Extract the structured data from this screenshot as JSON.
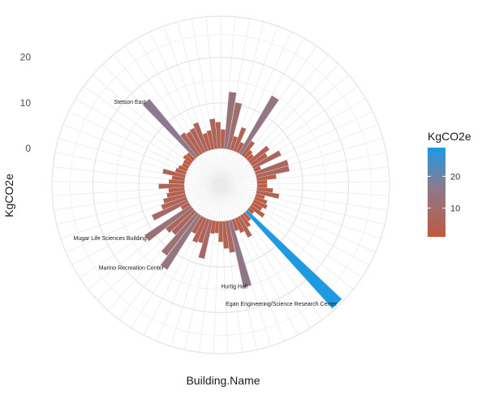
{
  "chart_data": {
    "type": "bar",
    "coord": "polar",
    "xlabel": "Building.Name",
    "ylabel": "KgCO2e",
    "y_ticks": [
      0,
      10,
      20
    ],
    "ylim": [
      -8,
      29
    ],
    "grid": true,
    "legend": {
      "title": "KgCO2e",
      "position": "right",
      "ticks": [
        10,
        20
      ],
      "range": [
        1,
        29
      ],
      "low_color": "#c0593f",
      "high_color": "#1a9be6"
    },
    "bars": [
      {
        "label": "",
        "value": 4.2
      },
      {
        "label": "",
        "value": 12.5
      },
      {
        "label": "",
        "value": 10.4
      },
      {
        "label": "",
        "value": 3.1
      },
      {
        "label": "",
        "value": 5.5
      },
      {
        "label": "",
        "value": 2.4
      },
      {
        "label": "",
        "value": 14.6
      },
      {
        "label": "",
        "value": 3.8
      },
      {
        "label": "",
        "value": 2.0
      },
      {
        "label": "",
        "value": 1.6
      },
      {
        "label": "",
        "value": 5.2
      },
      {
        "label": "",
        "value": 4.0
      },
      {
        "label": "",
        "value": 6.8
      },
      {
        "label": "",
        "value": 1.5
      },
      {
        "label": "",
        "value": 7.5
      },
      {
        "label": "",
        "value": 7.4
      },
      {
        "label": "",
        "value": 4.3
      },
      {
        "label": "",
        "value": 2.2
      },
      {
        "label": "",
        "value": 2.2
      },
      {
        "label": "",
        "value": 3.5
      },
      {
        "label": "",
        "value": 5.0
      },
      {
        "label": "",
        "value": 2.0
      },
      {
        "label": "",
        "value": 2.8
      },
      {
        "label": "",
        "value": 3.2
      },
      {
        "label": "",
        "value": 2.4
      },
      {
        "label": "",
        "value": 3.6
      },
      {
        "label": "",
        "value": 1.4
      },
      {
        "label": "Egan Engineering/Science Research Center",
        "value": 28.5
      },
      {
        "label": "",
        "value": 2.0
      },
      {
        "label": "",
        "value": 3.0
      },
      {
        "label": "",
        "value": 5.0
      },
      {
        "label": "",
        "value": 3.4
      },
      {
        "label": "",
        "value": 2.6
      },
      {
        "label": "Hurtig Hall",
        "value": 15.0
      },
      {
        "label": "",
        "value": 7.0
      },
      {
        "label": "",
        "value": 6.0
      },
      {
        "label": "",
        "value": 4.5
      },
      {
        "label": "",
        "value": 2.6
      },
      {
        "label": "",
        "value": 2.8
      },
      {
        "label": "",
        "value": 8.6
      },
      {
        "label": "",
        "value": 5.4
      },
      {
        "label": "",
        "value": 5.7
      },
      {
        "label": "",
        "value": 4.1
      },
      {
        "label": "Marino Recreation Center",
        "value": 14.0
      },
      {
        "label": "",
        "value": 11.5
      },
      {
        "label": "",
        "value": 6.8
      },
      {
        "label": "",
        "value": 7.4
      },
      {
        "label": "Mugar Life Sciences Building",
        "value": 12.0
      },
      {
        "label": "",
        "value": 2.0
      },
      {
        "label": "",
        "value": 8.5
      },
      {
        "label": "",
        "value": 5.8
      },
      {
        "label": "",
        "value": 5.0
      },
      {
        "label": "",
        "value": 4.0
      },
      {
        "label": "",
        "value": 3.5
      },
      {
        "label": "",
        "value": 5.6
      },
      {
        "label": "",
        "value": 3.4
      },
      {
        "label": "",
        "value": 2.8
      },
      {
        "label": "",
        "value": 5.0
      },
      {
        "label": "",
        "value": 2.4
      },
      {
        "label": "",
        "value": 2.0
      },
      {
        "label": "",
        "value": 1.5
      },
      {
        "label": "",
        "value": 1.6
      },
      {
        "label": "",
        "value": 2.2
      },
      {
        "label": "",
        "value": 2.0
      },
      {
        "label": "Stetson East",
        "value": 16.5
      },
      {
        "label": "",
        "value": 6.0
      },
      {
        "label": "",
        "value": 5.5
      },
      {
        "label": "",
        "value": 5.8
      },
      {
        "label": "",
        "value": 6.6
      },
      {
        "label": "",
        "value": 3.8
      },
      {
        "label": "",
        "value": 4.2
      },
      {
        "label": "",
        "value": 6.6
      },
      {
        "label": "",
        "value": 5.8
      }
    ]
  }
}
